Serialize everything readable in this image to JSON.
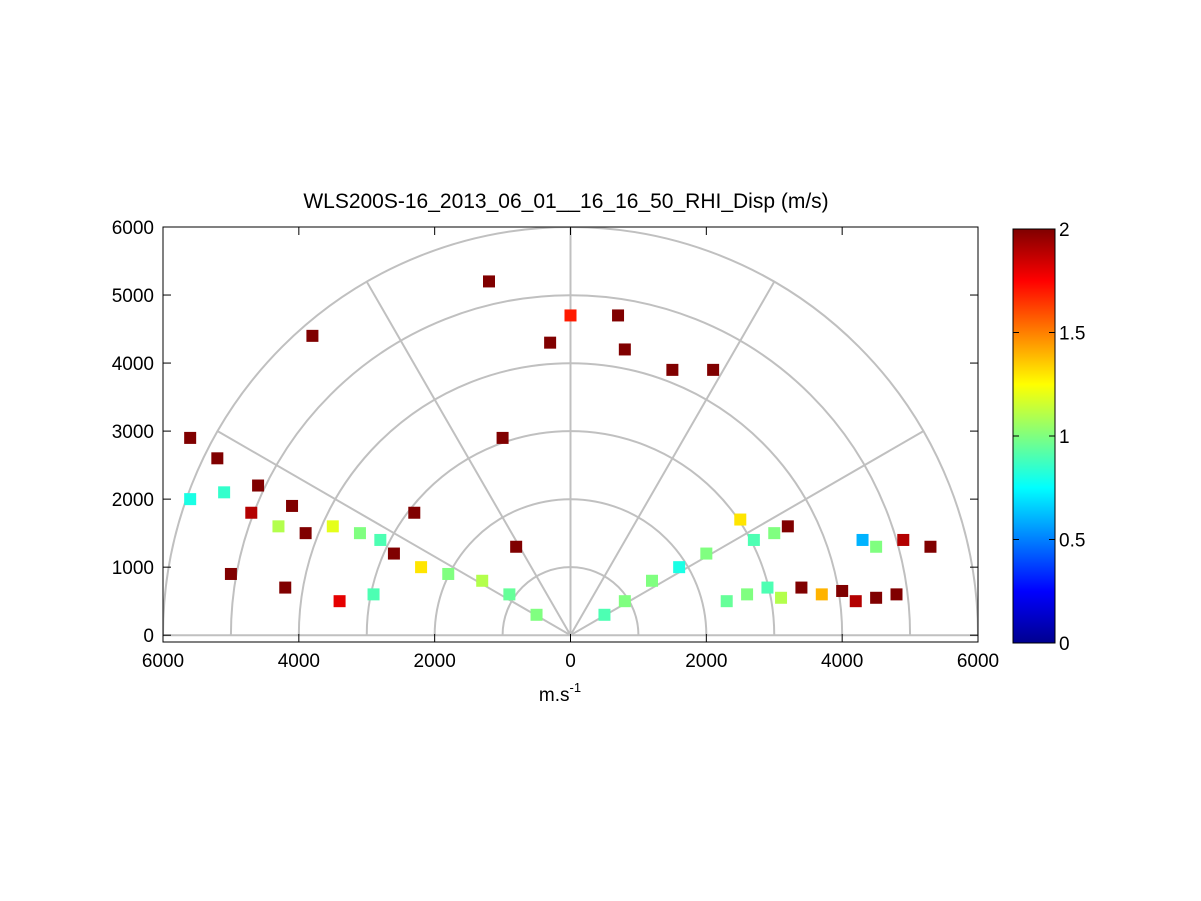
{
  "chart_data": {
    "type": "heatmap",
    "subtype": "polar-rhi",
    "title": "WLS200S-16_2013_06_01__16_16_50_RHI_Disp (m/s)",
    "xlabel": "m.s",
    "xlabel_superscript": "-1",
    "ylabel": "",
    "xlim": [
      -6000,
      6000
    ],
    "ylim": [
      -100,
      6000
    ],
    "x_ticks": [
      -6000,
      -4000,
      -2000,
      0,
      2000,
      4000,
      6000
    ],
    "x_tick_labels": [
      "6000",
      "4000",
      "2000",
      "0",
      "2000",
      "4000",
      "6000"
    ],
    "y_ticks": [
      0,
      1000,
      2000,
      3000,
      4000,
      5000,
      6000
    ],
    "y_tick_labels": [
      "0",
      "1000",
      "2000",
      "3000",
      "4000",
      "5000",
      "6000"
    ],
    "range_rings": [
      1000,
      2000,
      3000,
      4000,
      5000,
      6000
    ],
    "radial_spokes_deg": [
      0,
      30,
      60,
      90,
      120,
      150,
      180
    ],
    "colormap": "jet",
    "colorbar": {
      "min": 0,
      "max": 2,
      "ticks": [
        0,
        0.5,
        1,
        1.5,
        2
      ],
      "tick_labels": [
        "0",
        "0.5",
        "1",
        "1.5",
        "2"
      ]
    },
    "grid": true,
    "observations": [
      {
        "x": 4800,
        "y": 600,
        "v": 2.0
      },
      {
        "x": 4500,
        "y": 550,
        "v": 2.0
      },
      {
        "x": 4200,
        "y": 500,
        "v": 1.9
      },
      {
        "x": 4000,
        "y": 650,
        "v": 2.0
      },
      {
        "x": 3700,
        "y": 600,
        "v": 1.4
      },
      {
        "x": 3400,
        "y": 700,
        "v": 2.0
      },
      {
        "x": 3100,
        "y": 550,
        "v": 1.1
      },
      {
        "x": 2900,
        "y": 700,
        "v": 0.9
      },
      {
        "x": 2600,
        "y": 600,
        "v": 1.0
      },
      {
        "x": 2300,
        "y": 500,
        "v": 0.95
      },
      {
        "x": 5300,
        "y": 1300,
        "v": 2.0
      },
      {
        "x": 4900,
        "y": 1400,
        "v": 1.9
      },
      {
        "x": 4500,
        "y": 1300,
        "v": 1.0
      },
      {
        "x": 4300,
        "y": 1400,
        "v": 0.6
      },
      {
        "x": 3200,
        "y": 1600,
        "v": 2.0
      },
      {
        "x": 3000,
        "y": 1500,
        "v": 1.0
      },
      {
        "x": 2700,
        "y": 1400,
        "v": 0.9
      },
      {
        "x": 2500,
        "y": 1700,
        "v": 1.3
      },
      {
        "x": 2000,
        "y": 1200,
        "v": 1.0
      },
      {
        "x": 1600,
        "y": 1000,
        "v": 0.8
      },
      {
        "x": 1200,
        "y": 800,
        "v": 1.0
      },
      {
        "x": 800,
        "y": 500,
        "v": 1.0
      },
      {
        "x": 500,
        "y": 300,
        "v": 0.9
      },
      {
        "x": -500,
        "y": 300,
        "v": 1.0
      },
      {
        "x": -900,
        "y": 600,
        "v": 0.95
      },
      {
        "x": -1300,
        "y": 800,
        "v": 1.1
      },
      {
        "x": -1800,
        "y": 900,
        "v": 1.0
      },
      {
        "x": -2200,
        "y": 1000,
        "v": 1.3
      },
      {
        "x": -2600,
        "y": 1200,
        "v": 2.0
      },
      {
        "x": -2800,
        "y": 1400,
        "v": 0.9
      },
      {
        "x": -3100,
        "y": 1500,
        "v": 1.0
      },
      {
        "x": -3500,
        "y": 1600,
        "v": 1.2
      },
      {
        "x": -3900,
        "y": 1500,
        "v": 2.0
      },
      {
        "x": -4300,
        "y": 1600,
        "v": 1.1
      },
      {
        "x": -4700,
        "y": 1800,
        "v": 1.9
      },
      {
        "x": -5100,
        "y": 2100,
        "v": 0.85
      },
      {
        "x": -5600,
        "y": 2000,
        "v": 0.8
      },
      {
        "x": -2900,
        "y": 600,
        "v": 0.9
      },
      {
        "x": -3400,
        "y": 500,
        "v": 1.8
      },
      {
        "x": -4200,
        "y": 700,
        "v": 2.0
      },
      {
        "x": -5000,
        "y": 900,
        "v": 2.0
      },
      {
        "x": -2300,
        "y": 1800,
        "v": 2.0
      },
      {
        "x": -800,
        "y": 1300,
        "v": 2.0
      },
      {
        "x": 1500,
        "y": 3900,
        "v": 2.0
      },
      {
        "x": 2100,
        "y": 3900,
        "v": 2.0
      },
      {
        "x": -1000,
        "y": 2900,
        "v": 2.0
      },
      {
        "x": -4100,
        "y": 1900,
        "v": 2.0
      },
      {
        "x": -4600,
        "y": 2200,
        "v": 2.0
      },
      {
        "x": -5200,
        "y": 2600,
        "v": 2.0
      },
      {
        "x": -5600,
        "y": 2900,
        "v": 2.0
      },
      {
        "x": 0,
        "y": 4700,
        "v": 1.7
      },
      {
        "x": 700,
        "y": 4700,
        "v": 2.0
      },
      {
        "x": -3800,
        "y": 4400,
        "v": 2.0
      },
      {
        "x": -1200,
        "y": 5200,
        "v": 2.0
      },
      {
        "x": 800,
        "y": 4200,
        "v": 2.0
      },
      {
        "x": -300,
        "y": 4300,
        "v": 2.0
      }
    ]
  }
}
